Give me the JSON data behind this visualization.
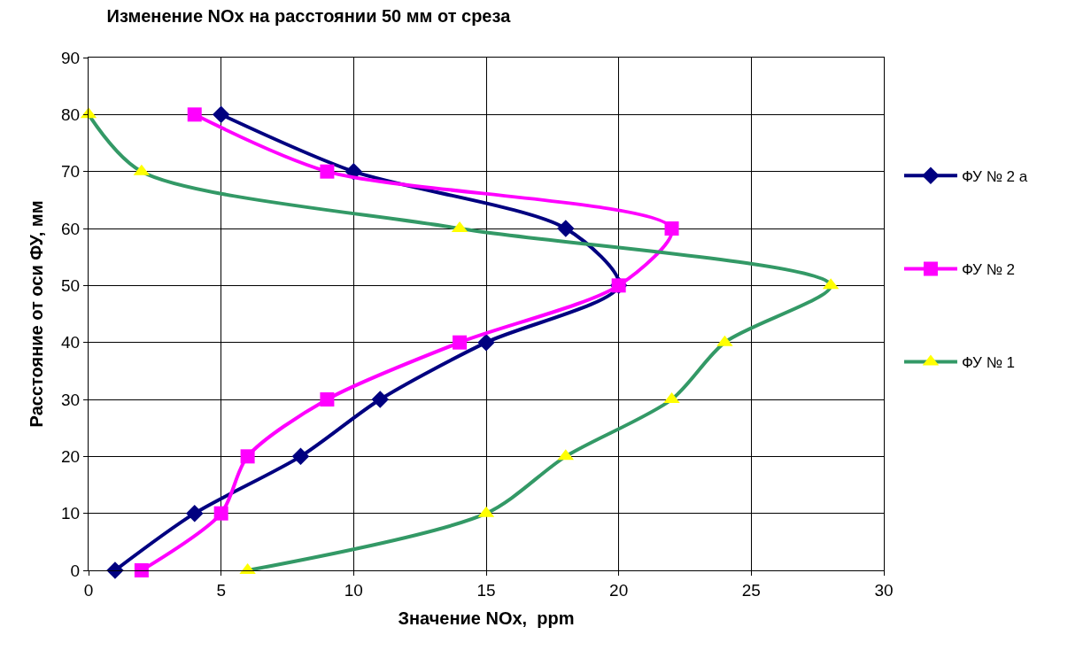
{
  "chart_data": {
    "type": "line",
    "title": "Изменение NOx на расстоянии 50 мм от среза",
    "xlabel": "Значение NOx,  ppm",
    "ylabel": "Расстояние от оси ФУ, мм",
    "xlim": [
      0,
      30
    ],
    "xticks": [
      0,
      5,
      10,
      15,
      20,
      25,
      30
    ],
    "ylim": [
      0,
      90
    ],
    "yticks": [
      0,
      10,
      20,
      30,
      40,
      50,
      60,
      70,
      80,
      90
    ],
    "grid": true,
    "legend": "right",
    "series": [
      {
        "name": "ФУ № 2 а",
        "color": "#000080",
        "marker": "diamond",
        "x": [
          1,
          4,
          8,
          11,
          15,
          20,
          18,
          10,
          5
        ],
        "values": [
          0,
          10,
          20,
          30,
          40,
          50,
          60,
          70,
          80
        ]
      },
      {
        "name": "ФУ № 2",
        "color": "#ff00ff",
        "marker": "square",
        "x": [
          2,
          5,
          6,
          9,
          14,
          20,
          22,
          9,
          4
        ],
        "values": [
          0,
          10,
          20,
          30,
          40,
          50,
          60,
          70,
          80
        ]
      },
      {
        "name": "ФУ № 1",
        "color": "#339966",
        "colors": [
          "#ffff00",
          "#ffff00",
          "#ffff00",
          "#ffff00",
          "#ffff00",
          "#ffff00",
          "#ffff00",
          "#ffff00",
          "#ffff00"
        ],
        "marker": "triangle",
        "x": [
          6,
          15,
          18,
          22,
          24,
          28,
          14,
          2,
          0
        ],
        "values": [
          0,
          10,
          20,
          30,
          40,
          50,
          60,
          70,
          80
        ]
      }
    ]
  }
}
